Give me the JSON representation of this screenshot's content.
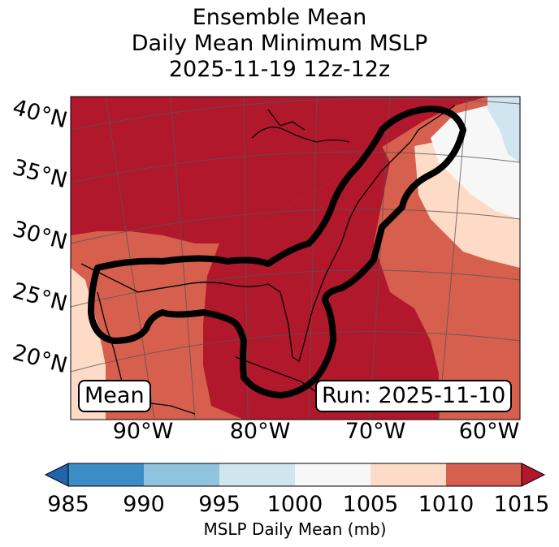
{
  "chart_data": {
    "type": "heatmap",
    "title_lines": [
      "Ensemble Mean",
      "Daily Mean Minimum MSLP",
      "2025-11-19 12z-12z"
    ],
    "lat_labels": [
      "40°N",
      "35°N",
      "30°N",
      "25°N",
      "20°N"
    ],
    "lon_labels": [
      "90°W",
      "80°W",
      "70°W",
      "60°W"
    ],
    "lat_range": [
      17,
      42
    ],
    "lon_range": [
      -97,
      -58
    ],
    "inset_left": "Mean",
    "inset_right": "Run: 2025-11-10",
    "colorbar": {
      "label": "MSLP Daily Mean (mb)",
      "ticks": [
        "985",
        "990",
        "995",
        "1000",
        "1005",
        "1010",
        "1015"
      ],
      "bins": [
        {
          "from": 985,
          "to": 990,
          "color": "#3c8dc3"
        },
        {
          "from": 990,
          "to": 995,
          "color": "#8fc3de"
        },
        {
          "from": 995,
          "to": 1000,
          "color": "#d1e5f0"
        },
        {
          "from": 1000,
          "to": 1005,
          "color": "#f7f7f7"
        },
        {
          "from": 1005,
          "to": 1010,
          "color": "#fddbc7"
        },
        {
          "from": 1010,
          "to": 1015,
          "color": "#d6604d"
        }
      ],
      "under_color": "#2166ac",
      "over_color": "#b2182b"
    },
    "field_regions": [
      {
        "level_mb": 1012,
        "description": "base field"
      },
      {
        "level_mb": 1016,
        "description": "northern/central US high"
      },
      {
        "level_mb": 1016,
        "description": "southeast US and Gulf of Mexico"
      },
      {
        "level_mb": 1007,
        "description": "Atlantic offshore"
      },
      {
        "level_mb": 1003,
        "description": "far NE Atlantic"
      },
      {
        "level_mb": 998,
        "description": "Nova Scotia corner"
      }
    ],
    "outline": "bold black contour enclosing western Gulf, Florida and US East Coast"
  }
}
